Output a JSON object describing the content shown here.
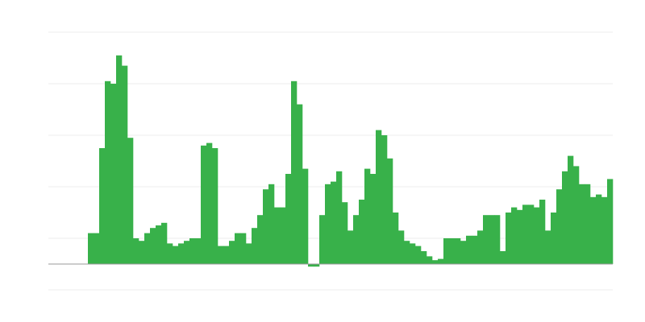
{
  "chart_data": {
    "type": "bar",
    "color": "#38b14a",
    "values": [
      0,
      0,
      0,
      0,
      0,
      0,
      0,
      1.2,
      1.2,
      4.5,
      7.1,
      7.0,
      8.1,
      7.7,
      4.9,
      1.0,
      0.9,
      1.2,
      1.4,
      1.5,
      1.6,
      0.8,
      0.7,
      0.8,
      0.9,
      1.0,
      1.0,
      4.6,
      4.7,
      4.5,
      0.7,
      0.7,
      0.9,
      1.2,
      1.2,
      0.8,
      1.4,
      1.9,
      2.9,
      3.1,
      2.2,
      2.2,
      3.5,
      7.1,
      6.2,
      3.7,
      -0.1,
      -0.1,
      1.9,
      3.1,
      3.2,
      3.6,
      2.4,
      1.3,
      1.9,
      2.5,
      3.7,
      3.5,
      5.2,
      5.0,
      4.1,
      2.0,
      1.3,
      0.9,
      0.8,
      0.7,
      0.5,
      0.3,
      0.15,
      0.2,
      1.0,
      1.0,
      1.0,
      0.9,
      1.1,
      1.1,
      1.3,
      1.9,
      1.9,
      1.9,
      0.5,
      2.0,
      2.2,
      2.1,
      2.3,
      2.3,
      2.2,
      2.5,
      1.3,
      2.0,
      2.9,
      3.6,
      4.2,
      3.8,
      3.1,
      3.1,
      2.6,
      2.7,
      2.6,
      3.3
    ],
    "ylim": [
      -1,
      9
    ],
    "yticks": [
      -1,
      1,
      3,
      5,
      7,
      9
    ],
    "grid": true
  }
}
